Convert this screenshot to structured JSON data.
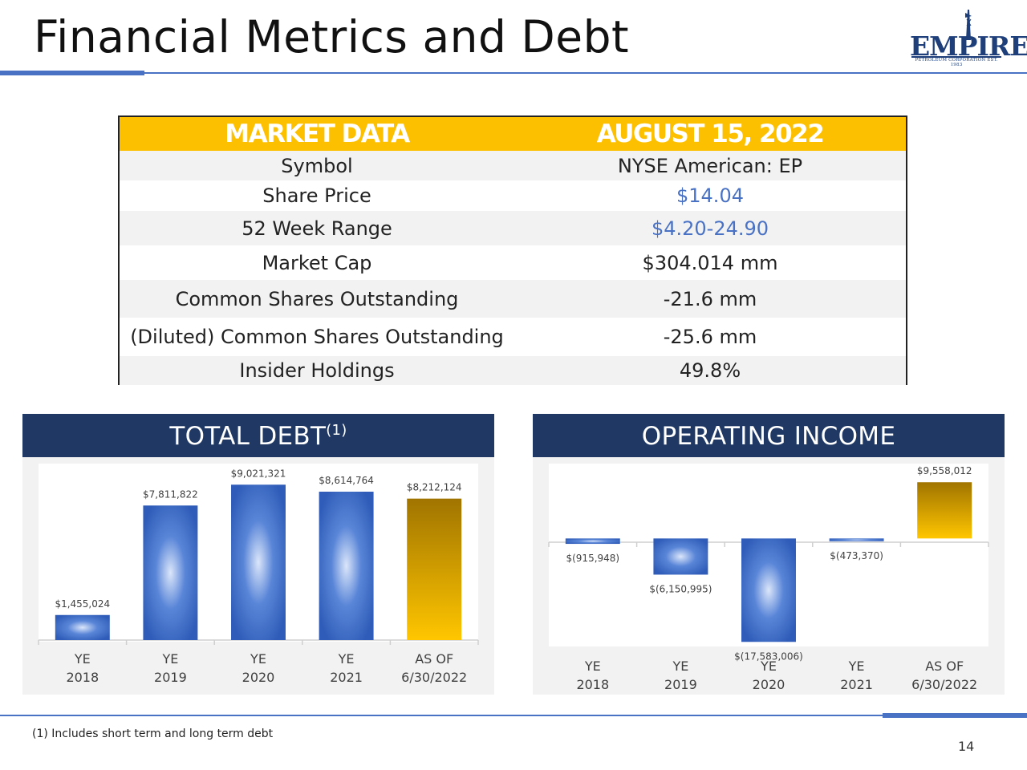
{
  "page": {
    "title": "Financial Metrics and Debt",
    "footnote": "(1) Includes short term and long term debt",
    "page_number": "14"
  },
  "logo": {
    "text": "EMPIRE",
    "subtitle": "PETROLEUM CORPORATION EST. 1983",
    "color": "#1e3f7a"
  },
  "market_table": {
    "header_left": "MARKET DATA",
    "header_right": "AUGUST 15, 2022",
    "rows": [
      {
        "label": "Symbol",
        "value": "NYSE American: EP"
      },
      {
        "label": "Share Price",
        "value": "$14.04"
      },
      {
        "label": "52 Week Range",
        "value": "$4.20-24.90"
      },
      {
        "label": "Market Cap",
        "value": "$304.014 mm"
      },
      {
        "label": "Common Shares Outstanding",
        "value": "-21.6 mm"
      },
      {
        "label": "(Diluted) Common Shares Outstanding",
        "value": "-25.6 mm"
      },
      {
        "label": "Insider Holdings",
        "value": "49.8%"
      }
    ],
    "header_color": "#fcc000",
    "highlight_color": "#4a72c4"
  },
  "debt_panel": {
    "title": "TOTAL DEBT",
    "title_sup": "(1)"
  },
  "income_panel": {
    "title": "OPERATING INCOME"
  },
  "chart_data": [
    {
      "type": "bar",
      "categories": [
        [
          "YE",
          "2018"
        ],
        [
          "YE",
          "2019"
        ],
        [
          "YE",
          "2020"
        ],
        [
          "YE",
          "2021"
        ],
        [
          "AS OF",
          "6/30/2022"
        ]
      ],
      "values": [
        1455024,
        7811822,
        9021321,
        8614764,
        8212124
      ],
      "data_labels": [
        "$1,455,024",
        "$7,811,822",
        "$9,021,321",
        "$8,614,764",
        "$8,212,124"
      ],
      "highlight_last": true,
      "ylim": [
        0,
        9500000
      ],
      "grid": false,
      "colors": {
        "blue": "#2f5cb8",
        "gold": "#f2b600"
      }
    },
    {
      "type": "bar",
      "categories": [
        [
          "YE",
          "2018"
        ],
        [
          "YE",
          "2019"
        ],
        [
          "YE",
          "2020"
        ],
        [
          "YE",
          "2021"
        ],
        [
          "AS OF",
          "6/30/2022"
        ]
      ],
      "values": [
        -915948,
        -6150995,
        -17583006,
        -473370,
        9558012
      ],
      "data_labels": [
        "$(915,948)",
        "$(6,150,995)",
        "$(17,583,006)",
        "$(473,370)",
        "$9,558,012"
      ],
      "highlight_last": true,
      "ylim": [
        -20000000,
        10000000
      ],
      "grid": false,
      "colors": {
        "blue": "#2f5cb8",
        "gold": "#f2b600"
      }
    }
  ]
}
